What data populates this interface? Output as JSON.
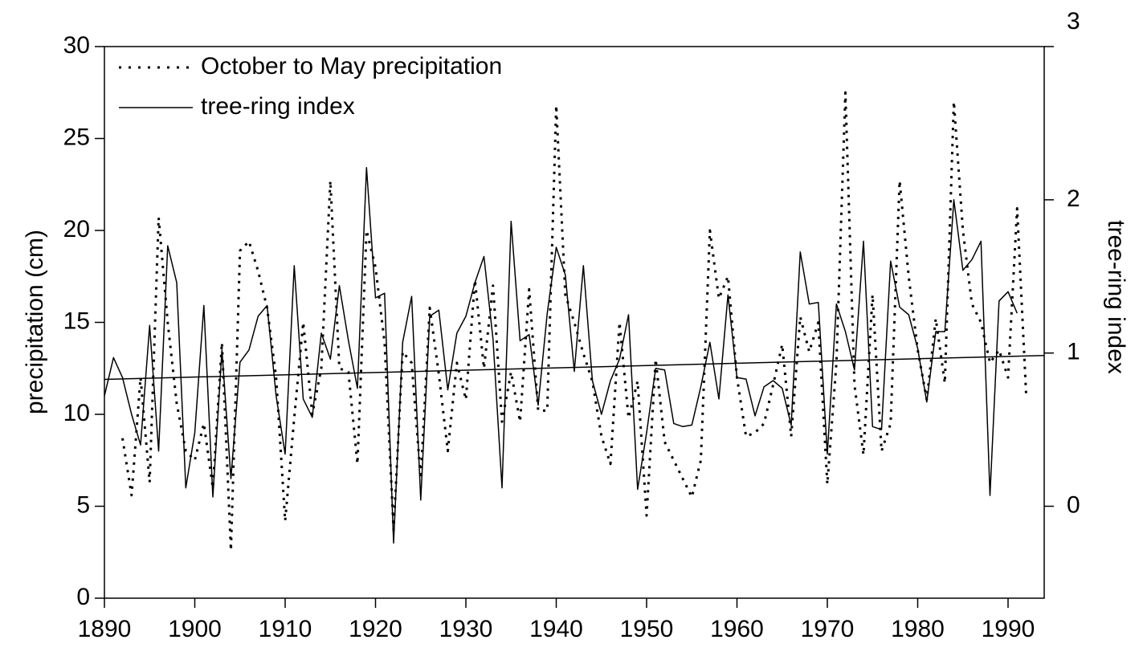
{
  "chart_data": {
    "type": "line",
    "ylabel": "precipitation (cm)",
    "y2label": "tree-ring index",
    "xlim": [
      1890,
      1994
    ],
    "ylim": [
      0,
      30
    ],
    "y2lim": [
      -0.6,
      3
    ],
    "xticks": [
      1890,
      1900,
      1910,
      1920,
      1930,
      1940,
      1950,
      1960,
      1970,
      1980,
      1990
    ],
    "yticks": [
      0,
      5,
      10,
      15,
      20,
      25,
      30
    ],
    "y2ticks": [
      0,
      1,
      2,
      3
    ],
    "legend": "upper left",
    "series": [
      {
        "name": "October to May precipitation",
        "color": "#000000",
        "style": "dotted",
        "x": [
          1892,
          1893,
          1894,
          1895,
          1896,
          1897,
          1898,
          1899,
          1900,
          1901,
          1902,
          1903,
          1904,
          1905,
          1906,
          1907,
          1908,
          1909,
          1910,
          1911,
          1912,
          1913,
          1914,
          1915,
          1916,
          1917,
          1918,
          1919,
          1920,
          1921,
          1922,
          1923,
          1924,
          1925,
          1926,
          1927,
          1928,
          1929,
          1930,
          1931,
          1932,
          1933,
          1934,
          1935,
          1936,
          1937,
          1938,
          1939,
          1940,
          1941,
          1942,
          1943,
          1944,
          1945,
          1946,
          1947,
          1948,
          1949,
          1950,
          1951,
          1952,
          1953,
          1954,
          1955,
          1956,
          1957,
          1958,
          1959,
          1960,
          1961,
          1962,
          1963,
          1964,
          1965,
          1966,
          1967,
          1968,
          1969,
          1970,
          1971,
          1972,
          1973,
          1974,
          1975,
          1976,
          1977,
          1978,
          1979,
          1980,
          1981,
          1982,
          1983,
          1984,
          1985,
          1986,
          1987,
          1988,
          1989,
          1990,
          1991,
          1992
        ],
        "values": [
          8.7,
          5.6,
          12,
          6.3,
          20.7,
          15,
          10.6,
          8,
          7.5,
          9.5,
          6,
          13.9,
          2.6,
          18.9,
          19.4,
          17.8,
          15.8,
          12,
          4.2,
          9.8,
          15,
          10,
          12.5,
          22.7,
          12.5,
          12.3,
          7.3,
          20,
          18,
          13.9,
          3.7,
          13.4,
          12.8,
          6.5,
          15.8,
          12.2,
          8,
          12.8,
          10.8,
          17.3,
          12.5,
          17,
          9.6,
          12.3,
          9.6,
          16.8,
          10.2,
          10.2,
          26.8,
          16.5,
          15,
          13.3,
          11.8,
          8.8,
          7.3,
          15,
          9.8,
          11.8,
          4.5,
          13,
          8.5,
          7.5,
          6.5,
          5.5,
          7.5,
          20,
          16.3,
          17.5,
          12,
          8.8,
          9,
          9.5,
          11.6,
          13.8,
          8.8,
          15.3,
          13.4,
          15,
          6.2,
          12.8,
          27.5,
          11.6,
          7.8,
          16.5,
          8,
          9.5,
          22.7,
          17.5,
          13.5,
          10.8,
          15.2,
          11.7,
          27,
          20,
          16,
          15,
          12.8,
          13.5,
          12,
          21.2,
          11.1
        ]
      },
      {
        "name": "tree-ring index",
        "color": "#000000",
        "style": "solid",
        "axis": "y2",
        "x": [
          1890,
          1891,
          1892,
          1893,
          1894,
          1895,
          1896,
          1897,
          1898,
          1899,
          1900,
          1901,
          1902,
          1903,
          1904,
          1905,
          1906,
          1907,
          1908,
          1909,
          1910,
          1911,
          1912,
          1913,
          1914,
          1915,
          1916,
          1917,
          1918,
          1919,
          1920,
          1921,
          1922,
          1923,
          1924,
          1925,
          1926,
          1927,
          1928,
          1929,
          1930,
          1931,
          1932,
          1933,
          1934,
          1935,
          1936,
          1937,
          1938,
          1939,
          1940,
          1941,
          1942,
          1943,
          1944,
          1945,
          1946,
          1947,
          1948,
          1949,
          1950,
          1951,
          1952,
          1953,
          1954,
          1955,
          1956,
          1957,
          1958,
          1959,
          1960,
          1961,
          1962,
          1963,
          1964,
          1965,
          1966,
          1967,
          1968,
          1969,
          1970,
          1971,
          1972,
          1973,
          1974,
          1975,
          1976,
          1977,
          1978,
          1979,
          1980,
          1981,
          1982,
          1983,
          1984,
          1985,
          1986,
          1987,
          1988,
          1989,
          1990,
          1991
        ],
        "values": [
          0.72,
          0.97,
          0.84,
          0.6,
          0.4,
          1.18,
          0.36,
          1.7,
          1.46,
          0.12,
          0.48,
          1.31,
          0.06,
          1.02,
          0.18,
          0.94,
          1.02,
          1.24,
          1.31,
          0.72,
          0.34,
          1.57,
          0.7,
          0.58,
          1.13,
          0.96,
          1.44,
          1.08,
          0.77,
          2.21,
          1.36,
          1.39,
          -0.24,
          1.07,
          1.37,
          0.04,
          1.24,
          1.28,
          0.76,
          1.13,
          1.24,
          1.46,
          1.63,
          1.09,
          0.12,
          1.86,
          1.08,
          1.12,
          0.66,
          1.26,
          1.69,
          1.51,
          0.88,
          1.57,
          0.82,
          0.6,
          0.82,
          0.96,
          1.25,
          0.11,
          0.48,
          0.9,
          0.89,
          0.54,
          0.52,
          0.53,
          0.78,
          1.07,
          0.7,
          1.38,
          0.84,
          0.83,
          0.59,
          0.78,
          0.82,
          0.77,
          0.53,
          1.66,
          1.32,
          1.33,
          0.34,
          1.32,
          1.14,
          0.89,
          1.73,
          0.52,
          0.5,
          1.6,
          1.3,
          1.25,
          1.03,
          0.68,
          1.14,
          1.14,
          2,
          1.54,
          1.61,
          1.73,
          0.07,
          1.34,
          1.4,
          1.26
        ]
      }
    ],
    "trend_line": {
      "x": [
        1890,
        1994
      ],
      "values": [
        11.9,
        13.2
      ]
    }
  }
}
